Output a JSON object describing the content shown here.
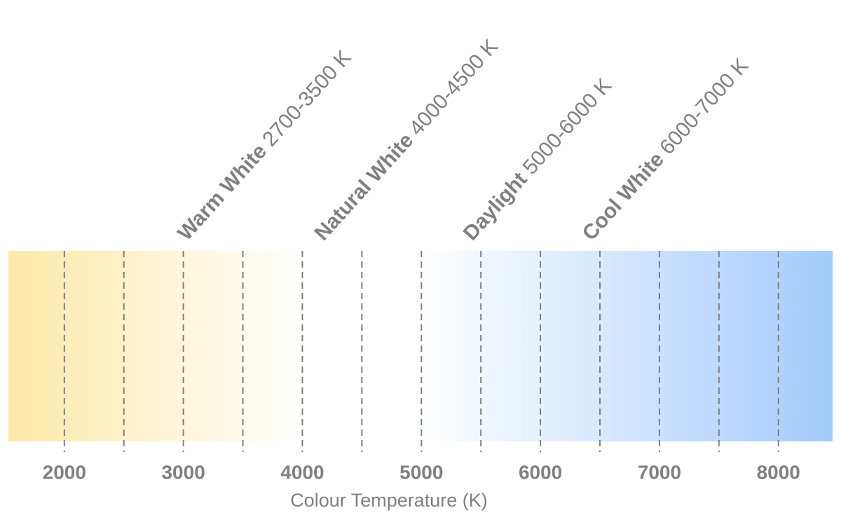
{
  "chart_data": {
    "type": "gradient",
    "x_label": "Colour Temperature (K)",
    "xlim": [
      1530,
      8455
    ],
    "xticks": [
      2000,
      3000,
      4000,
      5000,
      6000,
      7000,
      8000
    ],
    "minor_xticks": [
      2000,
      2500,
      3000,
      3500,
      4000,
      4500,
      5000,
      5500,
      6000,
      6500,
      7000,
      7500,
      8000
    ],
    "grid": true,
    "colors": [
      "#fee9a7",
      "#ffffff",
      "#ffffff",
      "#a4cbfd"
    ],
    "annotations": [
      {
        "name": "Warm White",
        "range_label": "2700-3500 K",
        "range": [
          2700,
          3500
        ]
      },
      {
        "name": "Natural White",
        "range_label": "4000-4500 K",
        "range": [
          4000,
          4500
        ]
      },
      {
        "name": "Daylight",
        "range_label": "5000-6000 K",
        "range": [
          5000,
          6000
        ]
      },
      {
        "name": "Cool White",
        "range_label": "6000-7000 K",
        "range": [
          6000,
          7000
        ]
      }
    ]
  }
}
